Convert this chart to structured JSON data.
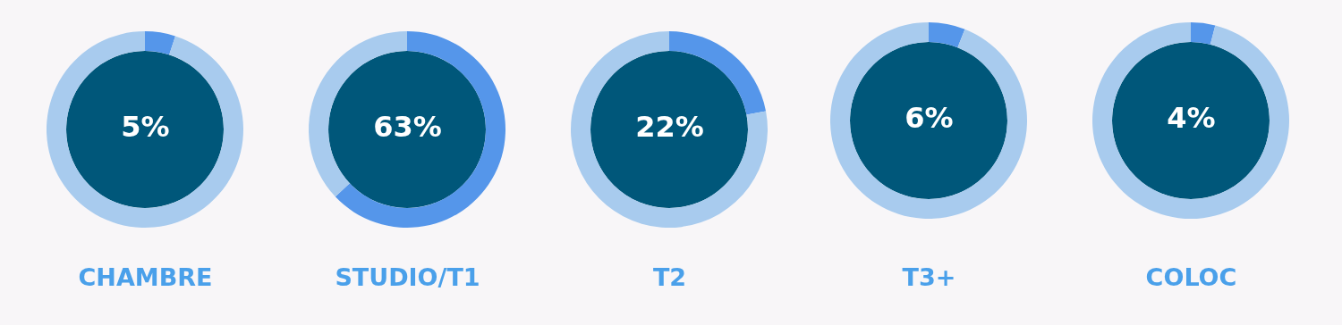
{
  "chart_data": [
    {
      "type": "donut",
      "title": "CHAMBRE",
      "categories": [
        null,
        null
      ],
      "values": [
        5,
        95
      ],
      "colors": [
        "#5596ea",
        "#a8cbee"
      ],
      "annotations": [
        "5%"
      ]
    },
    {
      "type": "donut",
      "title": "STUDIO/T1",
      "categories": [
        null,
        null
      ],
      "values": [
        63,
        37
      ],
      "colors": [
        "#5596ea",
        "#a8cbee"
      ],
      "annotations": [
        "63%"
      ]
    },
    {
      "type": "donut",
      "title": "T2",
      "categories": [
        null,
        null
      ],
      "values": [
        22,
        78
      ],
      "colors": [
        "#5596ea",
        "#a8cbee"
      ],
      "annotations": [
        "22%"
      ]
    },
    {
      "type": "donut",
      "title": "T3+",
      "categories": [
        null,
        null
      ],
      "values": [
        6,
        94
      ],
      "colors": [
        "#5596ea",
        "#a8cbee"
      ],
      "annotations": [
        "6%"
      ]
    },
    {
      "type": "donut",
      "title": "COLOC",
      "categories": [
        null,
        null
      ],
      "values": [
        4,
        96
      ],
      "colors": [
        "#5596ea",
        "#a8cbee"
      ],
      "annotations": [
        "4%"
      ]
    }
  ]
}
